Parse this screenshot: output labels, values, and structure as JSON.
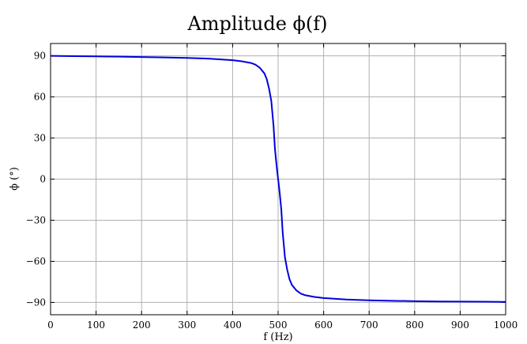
{
  "chart_data": {
    "type": "line",
    "title": "Amplitude ϕ(f)",
    "xlabel": "f (Hz)",
    "ylabel": "ϕ (°)",
    "xlim": [
      0,
      1000
    ],
    "ylim": [
      -99,
      99
    ],
    "xticks": [
      0,
      100,
      200,
      300,
      400,
      500,
      600,
      700,
      800,
      900,
      1000
    ],
    "yticks": [
      90,
      60,
      30,
      0,
      -30,
      -60,
      -90
    ],
    "ytick_labels": [
      "90",
      "60",
      "30",
      "0",
      "−30",
      "−60",
      "−90"
    ],
    "grid": true,
    "legend": "none",
    "series": [
      {
        "color": "#0000dd",
        "x": [
          0,
          50,
          100,
          150,
          200,
          250,
          300,
          350,
          400,
          420,
          440,
          450,
          460,
          470,
          475,
          480,
          485,
          490,
          493,
          496,
          498,
          500,
          502,
          504,
          507,
          510,
          515,
          520,
          525,
          530,
          540,
          550,
          560,
          580,
          600,
          650,
          700,
          750,
          800,
          850,
          900,
          950,
          1000
        ],
        "y": [
          90,
          89.8,
          89.6,
          89.4,
          89.1,
          88.8,
          88.5,
          87.9,
          86.8,
          86.0,
          84.8,
          83.6,
          81.2,
          77.1,
          73.0,
          66.2,
          57.1,
          38.7,
          22.2,
          11.9,
          5.6,
          0,
          -5.6,
          -11.9,
          -22.2,
          -38.7,
          -57.1,
          -66.2,
          -73.0,
          -77.1,
          -81.2,
          -83.6,
          -84.8,
          -86.0,
          -86.8,
          -87.9,
          -88.5,
          -88.8,
          -89.1,
          -89.3,
          -89.4,
          -89.5,
          -89.6
        ]
      }
    ]
  }
}
